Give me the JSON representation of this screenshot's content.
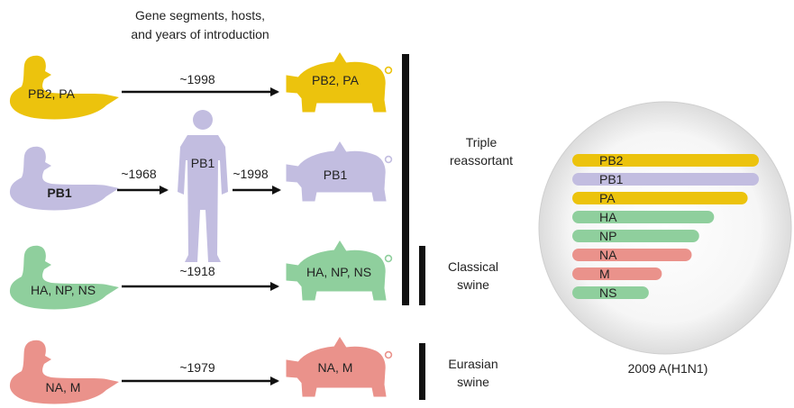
{
  "header": {
    "line1": "Gene segments, hosts,",
    "line2": "and years of introduction"
  },
  "rows": [
    {
      "duck_label": "PB2, PA",
      "year": "~1998",
      "pig_label": "PB2, PA",
      "color": "#ecc30d"
    },
    {
      "duck_label": "PB1",
      "year_to_human": "~1968",
      "human_label": "PB1",
      "year_to_pig": "~1998",
      "pig_label": "PB1",
      "color": "#c2bde0"
    },
    {
      "duck_label": "HA, NP, NS",
      "year": "~1918",
      "pig_label": "HA, NP, NS",
      "color": "#8fcf9d"
    },
    {
      "duck_label": "NA, M",
      "year": "~1979",
      "pig_label": "NA, M",
      "color": "#ea928b"
    }
  ],
  "lineages": {
    "triple": {
      "line1": "Triple",
      "line2": "reassortant"
    },
    "classical": {
      "line1": "Classical",
      "line2": "swine"
    },
    "eurasian": {
      "line1": "Eurasian",
      "line2": "swine"
    }
  },
  "virus": {
    "caption": "2009 A(H1N1)",
    "segments": [
      {
        "name": "PB2",
        "color": "#ecc30d",
        "length": 1.0
      },
      {
        "name": "PB1",
        "color": "#c2bde0",
        "length": 1.0
      },
      {
        "name": "PA",
        "color": "#ecc30d",
        "length": 0.94
      },
      {
        "name": "HA",
        "color": "#8fcf9d",
        "length": 0.76
      },
      {
        "name": "NP",
        "color": "#8fcf9d",
        "length": 0.68
      },
      {
        "name": "NA",
        "color": "#ea928b",
        "length": 0.64
      },
      {
        "name": "M",
        "color": "#ea928b",
        "length": 0.48
      },
      {
        "name": "NS",
        "color": "#8fcf9d",
        "length": 0.41
      }
    ]
  }
}
